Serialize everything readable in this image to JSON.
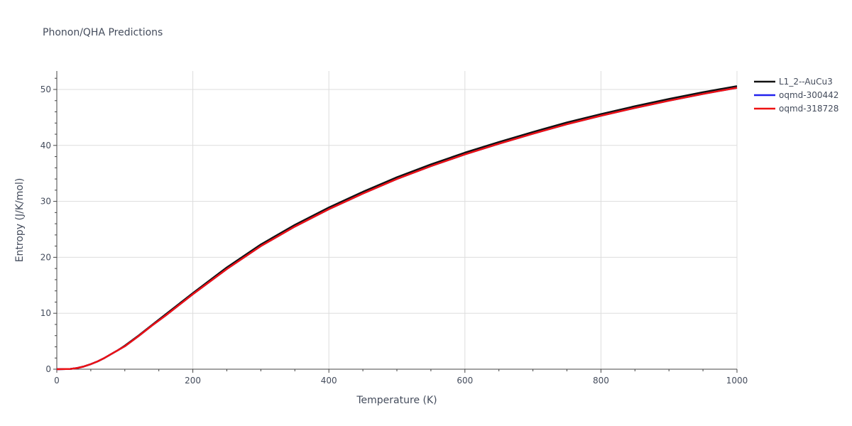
{
  "chart_data": {
    "type": "line",
    "title": "Phonon/QHA Predictions",
    "xlabel": "Temperature (K)",
    "ylabel": "Entropy (J/K/mol)",
    "xlim": [
      0,
      1000
    ],
    "ylim": [
      0,
      53.3
    ],
    "xticks": [
      0,
      200,
      400,
      600,
      800,
      1000
    ],
    "yticks": [
      0,
      10,
      20,
      30,
      40,
      50
    ],
    "grid": true,
    "legend_position": "top-right",
    "series": [
      {
        "name": "L1_2--AuCu3",
        "color": "#111111",
        "x": [
          0,
          20,
          30,
          40,
          50,
          60,
          70,
          80,
          90,
          100,
          120,
          140,
          160,
          180,
          200,
          250,
          300,
          350,
          400,
          450,
          500,
          550,
          600,
          650,
          700,
          750,
          800,
          850,
          900,
          950,
          1000
        ],
        "y": [
          0,
          0.05,
          0.2,
          0.5,
          0.9,
          1.4,
          2.0,
          2.7,
          3.4,
          4.2,
          6.0,
          7.9,
          9.8,
          11.7,
          13.6,
          18.2,
          22.3,
          25.8,
          28.9,
          31.7,
          34.3,
          36.6,
          38.7,
          40.6,
          42.4,
          44.1,
          45.6,
          47.0,
          48.3,
          49.5,
          50.6
        ]
      },
      {
        "name": "oqmd-300442",
        "color": "#2222ee",
        "x": [
          0,
          20,
          30,
          40,
          50,
          60,
          70,
          80,
          90,
          100,
          120,
          140,
          160,
          180,
          200,
          250,
          300,
          350,
          400,
          450,
          500,
          550,
          600,
          650,
          700,
          750,
          800,
          850,
          900,
          950,
          1000
        ],
        "y": [
          0,
          0.05,
          0.2,
          0.5,
          0.9,
          1.4,
          2.0,
          2.7,
          3.4,
          4.1,
          5.9,
          7.8,
          9.6,
          11.5,
          13.4,
          17.9,
          22.0,
          25.5,
          28.6,
          31.4,
          34.0,
          36.3,
          38.4,
          40.3,
          42.1,
          43.8,
          45.3,
          46.7,
          48.0,
          49.2,
          50.3
        ]
      },
      {
        "name": "oqmd-318728",
        "color": "#ee1111",
        "x": [
          0,
          20,
          30,
          40,
          50,
          60,
          70,
          80,
          90,
          100,
          120,
          140,
          160,
          180,
          200,
          250,
          300,
          350,
          400,
          450,
          500,
          550,
          600,
          650,
          700,
          750,
          800,
          850,
          900,
          950,
          1000
        ],
        "y": [
          0,
          0.05,
          0.2,
          0.5,
          0.9,
          1.4,
          2.0,
          2.7,
          3.4,
          4.1,
          5.9,
          7.8,
          9.6,
          11.5,
          13.4,
          17.9,
          22.0,
          25.5,
          28.6,
          31.4,
          34.0,
          36.3,
          38.4,
          40.3,
          42.1,
          43.8,
          45.3,
          46.7,
          48.0,
          49.2,
          50.3
        ]
      }
    ]
  }
}
